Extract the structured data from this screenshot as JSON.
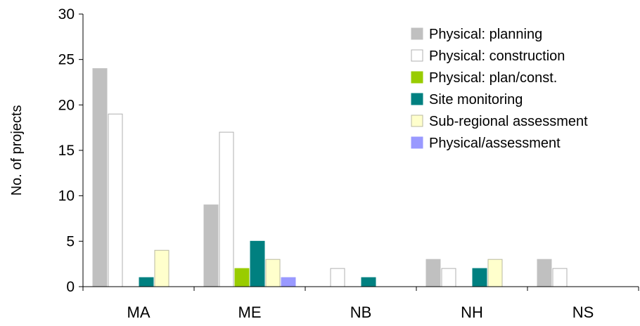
{
  "chart_data": {
    "type": "bar",
    "title": "",
    "xlabel": "",
    "ylabel": "No. of projects",
    "ylim": [
      0,
      30
    ],
    "yticks": [
      0,
      5,
      10,
      15,
      20,
      25,
      30
    ],
    "grid": false,
    "legend_position": "top-right",
    "categories": [
      "MA",
      "ME",
      "NB",
      "NH",
      "NS"
    ],
    "series": [
      {
        "name": "Physical: planning",
        "color": "#c0c0c0",
        "stroke": "#c0c0c0",
        "values": [
          24,
          9,
          0,
          3,
          3
        ]
      },
      {
        "name": "Physical: construction",
        "color": "#ffffff",
        "stroke": "#b0b0b0",
        "values": [
          19,
          17,
          2,
          2,
          2
        ]
      },
      {
        "name": "Physical: plan/const.",
        "color": "#99cc00",
        "stroke": "#99cc00",
        "values": [
          0,
          2,
          0,
          0,
          0
        ]
      },
      {
        "name": "Site monitoring",
        "color": "#008080",
        "stroke": "#008080",
        "values": [
          1,
          5,
          1,
          2,
          0
        ]
      },
      {
        "name": "Sub-regional assessment",
        "color": "#ffffcc",
        "stroke": "#b8b8a0",
        "values": [
          4,
          3,
          0,
          3,
          0
        ]
      },
      {
        "name": "Physical/assessment",
        "color": "#9999ff",
        "stroke": "#9999ff",
        "values": [
          0,
          1,
          0,
          0,
          0
        ]
      }
    ]
  }
}
